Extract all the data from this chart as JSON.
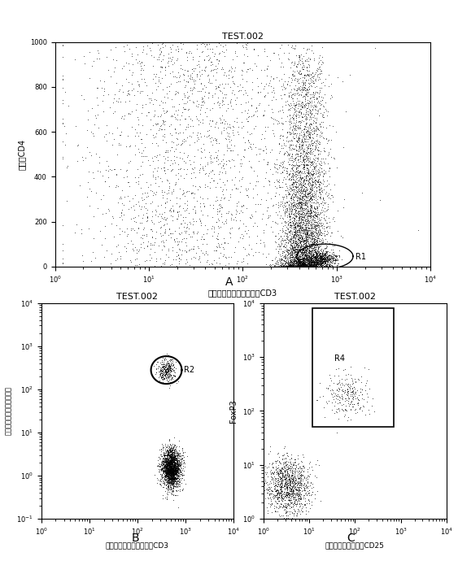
{
  "panel_A": {
    "title": "TEST.002",
    "xlabel": "多甲腔叶绻荷蛋白标记的CD3",
    "ylabel": "光散射CD4",
    "xlim_log": [
      0,
      4
    ],
    "ylim": [
      0,
      1000
    ],
    "yticks": [
      0,
      200,
      400,
      600,
      800,
      1000
    ],
    "gate_label": "R1"
  },
  "panel_B": {
    "title": "TEST.002",
    "xlabel": "多甲腔叶绻荷蛋白标记的CD3",
    "ylabel": "异硬氧胺荷光标记的消化道",
    "xlim_log": [
      0,
      4
    ],
    "ylim_log": [
      -1,
      4
    ],
    "gate_label": "R2"
  },
  "panel_C": {
    "title": "TEST.002",
    "xlabel": "异硬氧胺荷光标记的CD25",
    "ylabel": "FoxP3",
    "xlim_log": [
      0,
      4
    ],
    "ylim_log": [
      0,
      4
    ],
    "gate_label": "R4"
  },
  "dot_color": "#000000",
  "bg_color": "#ffffff",
  "label_A": "A",
  "label_B": "B",
  "label_C": "C"
}
